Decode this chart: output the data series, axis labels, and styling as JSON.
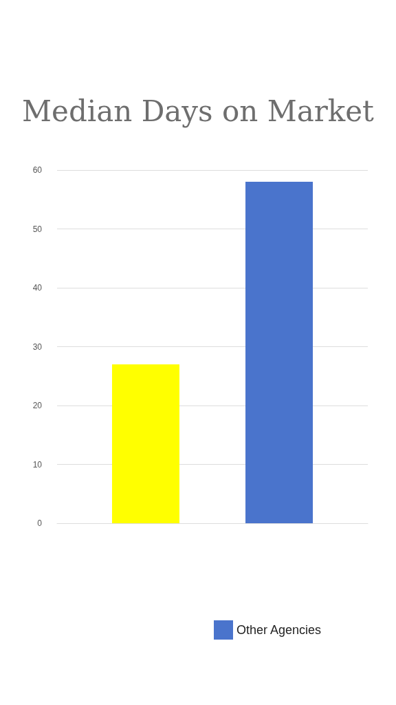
{
  "chart_data": {
    "type": "bar",
    "title": "Median Days on Market",
    "categories": [
      null
    ],
    "series": [
      {
        "color": "#ffff00",
        "values": [
          27
        ]
      },
      {
        "name": "Other Agencies",
        "color": "#4a74cc",
        "values": [
          58
        ]
      }
    ],
    "ylim": [
      0,
      60
    ],
    "yticks": [
      0,
      10,
      20,
      30,
      40,
      50,
      60
    ],
    "grid": "y",
    "legend": "bottom"
  }
}
